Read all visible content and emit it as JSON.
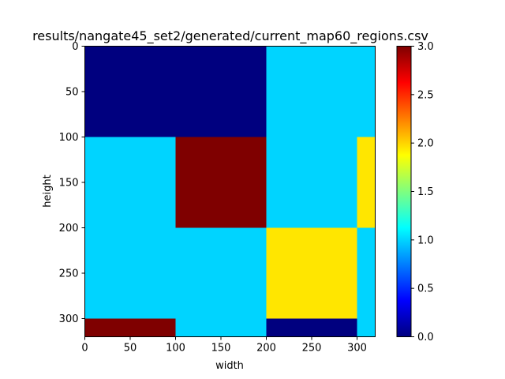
{
  "chart_data": {
    "type": "heatmap",
    "title": "results/nangate45_set2/generated/current_map60_regions.csv",
    "xlabel": "width",
    "ylabel": "height",
    "xlim": [
      0,
      320
    ],
    "ylim": [
      320,
      0
    ],
    "x_ticks": [
      0,
      50,
      100,
      150,
      200,
      250,
      300
    ],
    "y_ticks": [
      0,
      50,
      100,
      150,
      200,
      250,
      300
    ],
    "colormap": "jet",
    "colorbar": {
      "range": [
        0.0,
        3.0
      ],
      "ticks": [
        "0.0",
        "0.5",
        "1.0",
        "1.5",
        "2.0",
        "2.5",
        "3.0"
      ],
      "stops": [
        "#00007f",
        "#0000ff",
        "#007fff",
        "#00ffff",
        "#7fff7f",
        "#ffff00",
        "#ff7f00",
        "#ff0000",
        "#7f0000"
      ]
    },
    "regions": [
      {
        "x0": 0,
        "x1": 200,
        "y0": 0,
        "y1": 100,
        "value": 0
      },
      {
        "x0": 200,
        "x1": 320,
        "y0": 0,
        "y1": 100,
        "value": 1
      },
      {
        "x0": 0,
        "x1": 100,
        "y0": 100,
        "y1": 200,
        "value": 1
      },
      {
        "x0": 100,
        "x1": 200,
        "y0": 100,
        "y1": 200,
        "value": 3
      },
      {
        "x0": 200,
        "x1": 300,
        "y0": 100,
        "y1": 200,
        "value": 1
      },
      {
        "x0": 300,
        "x1": 320,
        "y0": 100,
        "y1": 200,
        "value": 2
      },
      {
        "x0": 0,
        "x1": 200,
        "y0": 200,
        "y1": 300,
        "value": 1
      },
      {
        "x0": 200,
        "x1": 300,
        "y0": 200,
        "y1": 300,
        "value": 2
      },
      {
        "x0": 300,
        "x1": 320,
        "y0": 200,
        "y1": 300,
        "value": 1
      },
      {
        "x0": 0,
        "x1": 100,
        "y0": 300,
        "y1": 320,
        "value": 3
      },
      {
        "x0": 100,
        "x1": 200,
        "y0": 300,
        "y1": 320,
        "value": 1
      },
      {
        "x0": 200,
        "x1": 300,
        "y0": 300,
        "y1": 320,
        "value": 0
      },
      {
        "x0": 300,
        "x1": 320,
        "y0": 300,
        "y1": 320,
        "value": 1
      }
    ],
    "value_colors": {
      "0": "#00007f",
      "1": "#00d4ff",
      "2": "#ffe600",
      "3": "#7f0000"
    }
  }
}
